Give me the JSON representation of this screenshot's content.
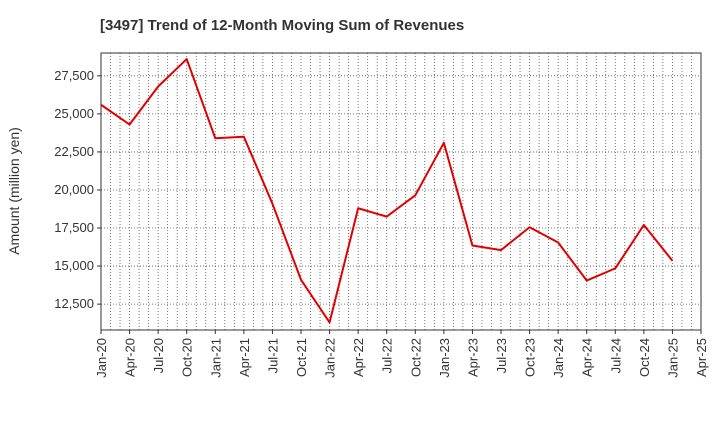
{
  "chart_data": {
    "type": "line",
    "title": "[3497]  Trend of 12-Month Moving Sum of Revenues",
    "ylabel": "Amount (million yen)",
    "xlabel": "",
    "ylim": [
      10800,
      29000
    ],
    "yticks": [
      12500,
      15000,
      17500,
      20000,
      22500,
      25000,
      27500
    ],
    "ytick_labels": [
      "12,500",
      "15,000",
      "17,500",
      "20,000",
      "22,500",
      "25,000",
      "27,500"
    ],
    "xticks": [
      "Jan-20",
      "Apr-20",
      "Jul-20",
      "Oct-20",
      "Jan-21",
      "Apr-21",
      "Jul-21",
      "Oct-21",
      "Jan-22",
      "Apr-22",
      "Jul-22",
      "Oct-22",
      "Jan-23",
      "Apr-23",
      "Jul-23",
      "Oct-23",
      "Jan-24",
      "Apr-24",
      "Jul-24",
      "Oct-24",
      "Jan-25",
      "Apr-25"
    ],
    "grid": true,
    "colors": {
      "line": "#e00000",
      "grid": "#555555",
      "axis": "#333333"
    },
    "series": [
      {
        "x": [
          "Jan-20",
          "Apr-20",
          "Jul-20",
          "Oct-20",
          "Jan-21",
          "Apr-21",
          "Jul-21",
          "Oct-21",
          "Jan-22",
          "Apr-22",
          "Jul-22",
          "Oct-22",
          "Jan-23",
          "Apr-23",
          "Jul-23",
          "Oct-23",
          "Jan-24",
          "Apr-24",
          "Jul-24",
          "Oct-24",
          "Jan-25"
        ],
        "values": [
          25600,
          24300,
          26800,
          28600,
          23400,
          23500,
          19100,
          14100,
          11300,
          18800,
          18250,
          19650,
          23100,
          16350,
          16050,
          17550,
          16550,
          14050,
          14850,
          17700,
          15350
        ]
      }
    ]
  }
}
